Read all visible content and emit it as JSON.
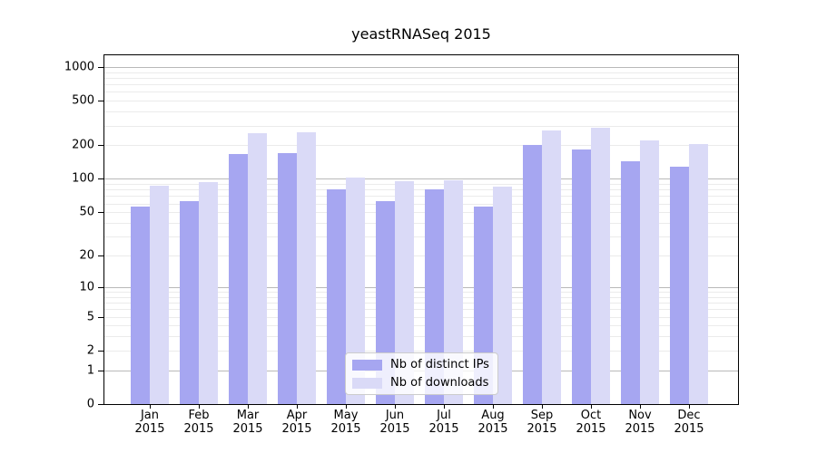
{
  "title": "yeastRNASeq 2015",
  "colors": {
    "distinct_ips": "#a6a6f1",
    "downloads": "#dadaf7",
    "grid_major": "#b9b9b9",
    "grid_minor": "#ebebeb",
    "axis": "#000000"
  },
  "legend": {
    "items": [
      {
        "label": "Nb of distinct IPs",
        "color_key": "distinct_ips"
      },
      {
        "label": "Nb of downloads",
        "color_key": "downloads"
      }
    ]
  },
  "y_axis": {
    "tick_labels": [
      "0",
      "1",
      "2",
      "5",
      "10",
      "20",
      "50",
      "100",
      "200",
      "500",
      "1000"
    ],
    "tick_values": [
      0,
      1,
      2,
      5,
      10,
      20,
      50,
      100,
      200,
      500,
      1000
    ],
    "major_grid_values": [
      1,
      10,
      100,
      1000
    ],
    "scale": "log1p"
  },
  "x_axis": {
    "months": [
      "Jan",
      "Feb",
      "Mar",
      "Apr",
      "May",
      "Jun",
      "Jul",
      "Aug",
      "Sep",
      "Oct",
      "Nov",
      "Dec"
    ],
    "year": "2015"
  },
  "chart_data": {
    "type": "bar",
    "title": "yeastRNASeq 2015",
    "categories": [
      "Jan 2015",
      "Feb 2015",
      "Mar 2015",
      "Apr 2015",
      "May 2015",
      "Jun 2015",
      "Jul 2015",
      "Aug 2015",
      "Sep 2015",
      "Oct 2015",
      "Nov 2015",
      "Dec 2015"
    ],
    "series": [
      {
        "name": "Nb of distinct IPs",
        "values": [
          56,
          63,
          167,
          170,
          81,
          63,
          80,
          56,
          200,
          183,
          143,
          128
        ]
      },
      {
        "name": "Nb of downloads",
        "values": [
          87,
          93,
          255,
          260,
          102,
          95,
          98,
          85,
          272,
          285,
          220,
          207
        ]
      }
    ],
    "yscale": "log1p",
    "yticks": [
      0,
      1,
      2,
      5,
      10,
      20,
      50,
      100,
      200,
      500,
      1000
    ],
    "ylim": [
      0,
      1300
    ],
    "grid": true,
    "legend_position": "lower center"
  }
}
